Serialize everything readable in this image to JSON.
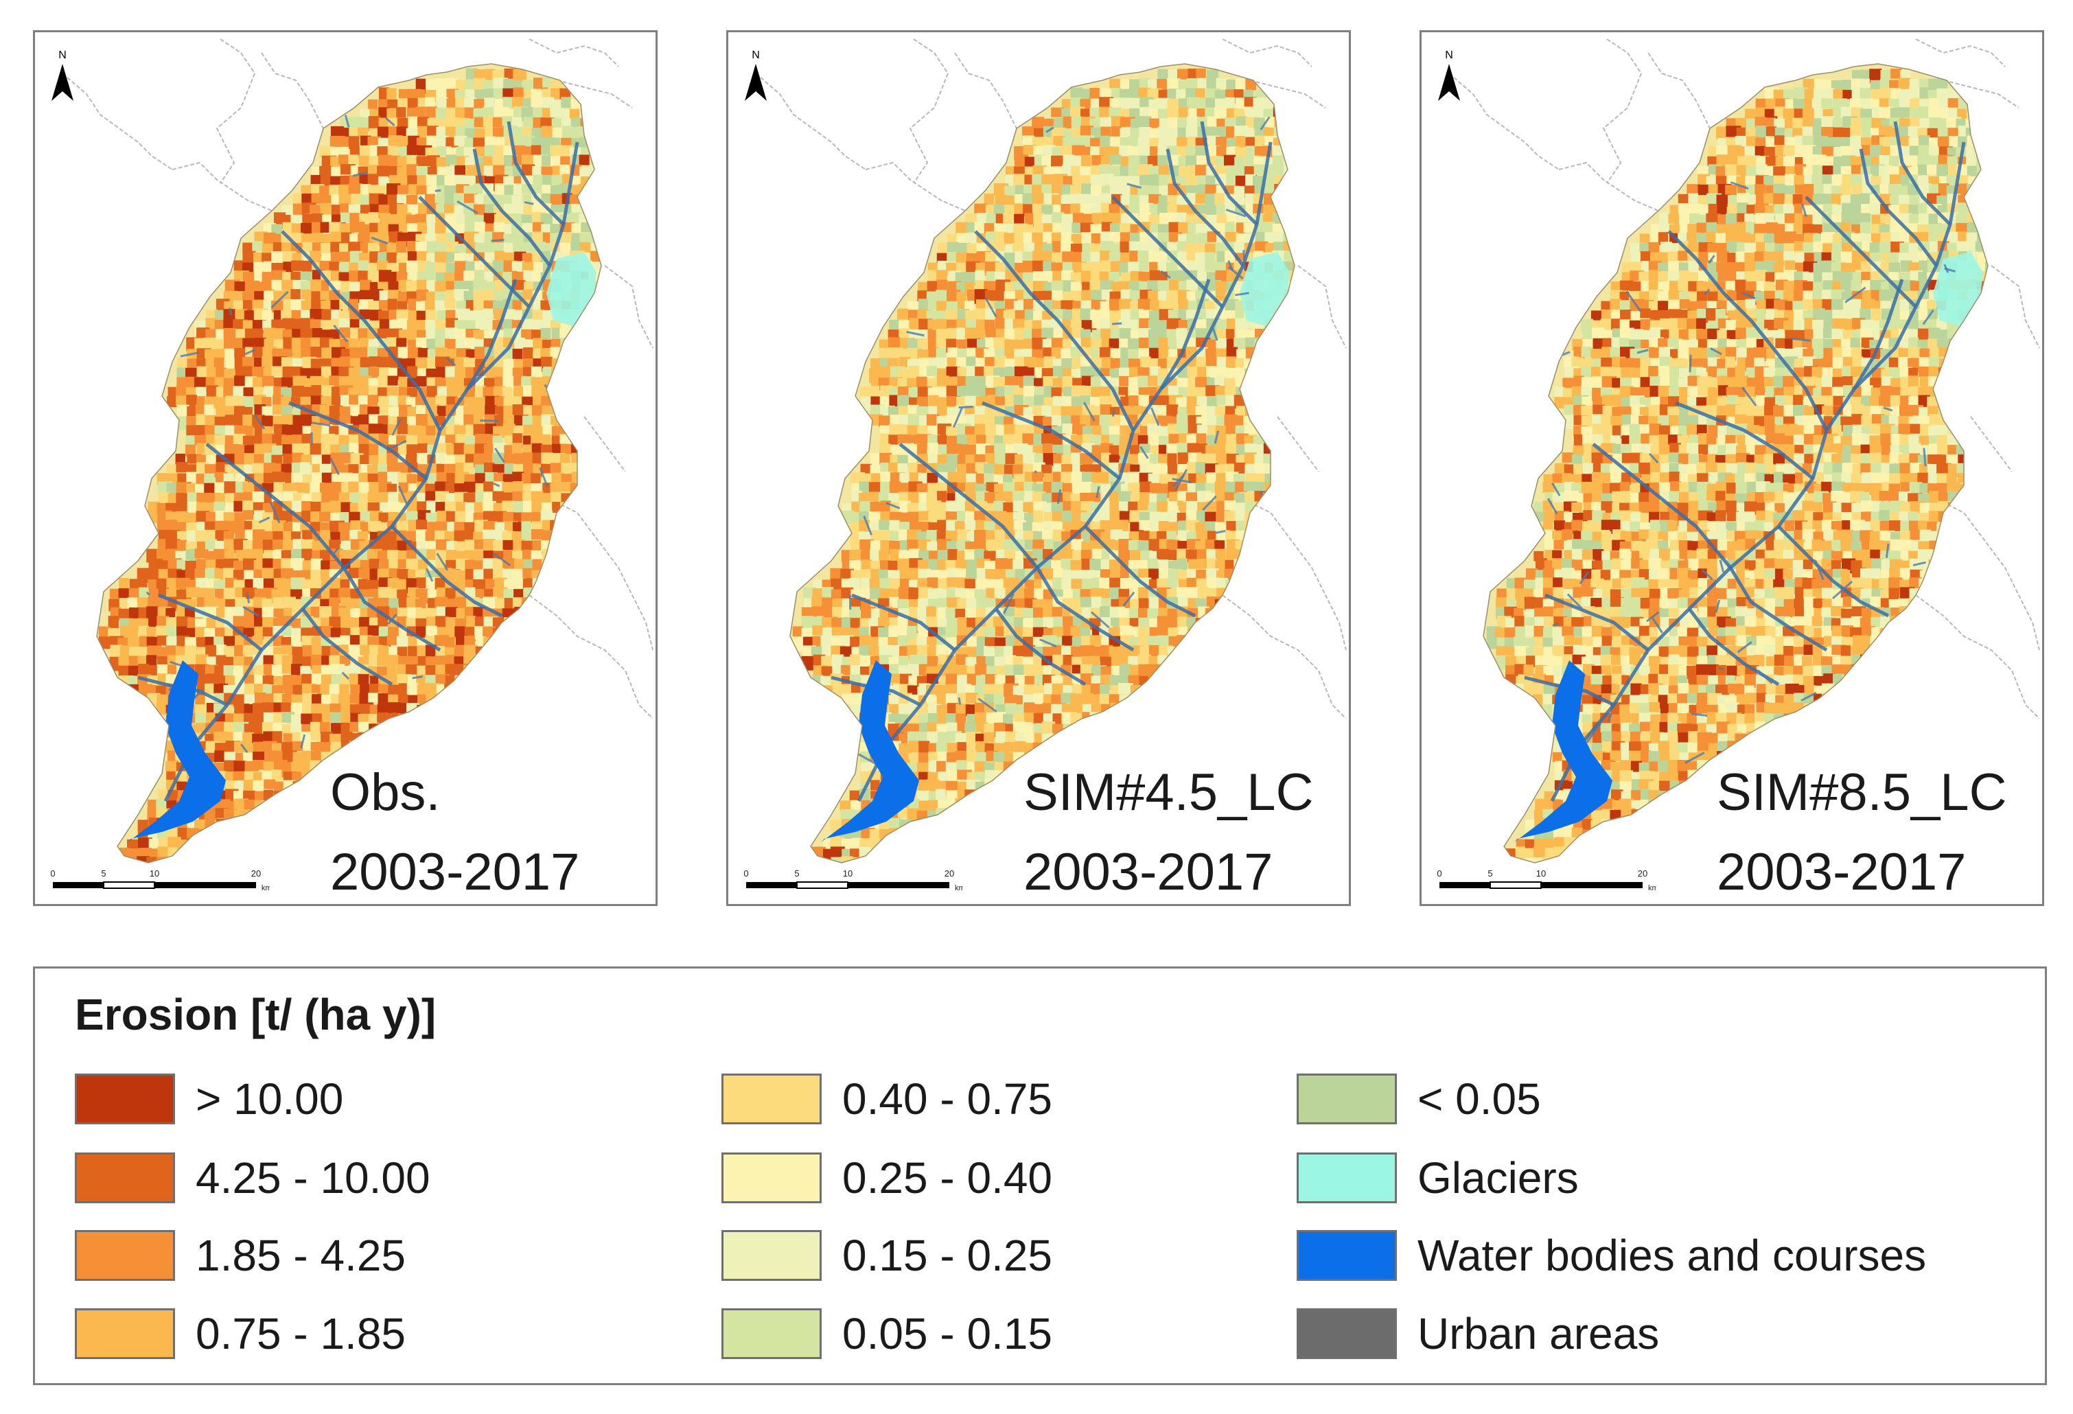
{
  "maps": [
    {
      "label_line1": "Obs.",
      "label_line2": "2003-2017"
    },
    {
      "label_line1": "SIM#4.5_LC",
      "label_line2": "2003-2017"
    },
    {
      "label_line1": "SIM#8.5_LC",
      "label_line2": "2003-2017"
    }
  ],
  "north_arrow": {
    "letter": "N"
  },
  "scale_bar": {
    "ticks": [
      "0",
      "5",
      "10",
      "20"
    ],
    "unit": "km"
  },
  "legend": {
    "title": "Erosion [t/ (ha y)]",
    "items": [
      {
        "label": "> 10.00",
        "color": "#c0360c"
      },
      {
        "label": "4.25 - 10.00",
        "color": "#e0641c"
      },
      {
        "label": "1.85 - 4.25",
        "color": "#f59036"
      },
      {
        "label": "0.75 - 1.85",
        "color": "#fbb84e"
      },
      {
        "label": "0.40 - 0.75",
        "color": "#fcdb7c"
      },
      {
        "label": "0.25 - 0.40",
        "color": "#fdf3b0"
      },
      {
        "label": "0.15 - 0.25",
        "color": "#eef2b8"
      },
      {
        "label": "0.05 - 0.15",
        "color": "#d4e5a2"
      },
      {
        "label": "< 0.05",
        "color": "#bad49a"
      },
      {
        "label": "Glaciers",
        "color": "#9cf6e4"
      },
      {
        "label": "Water bodies and courses",
        "color": "#0a6fe8"
      },
      {
        "label": "Urban areas",
        "color": "#6c6c6c"
      }
    ]
  }
}
